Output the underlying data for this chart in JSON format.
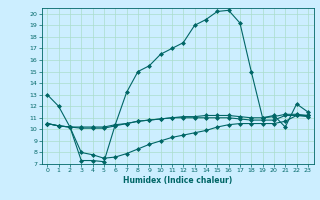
{
  "title": "",
  "xlabel": "Humidex (Indice chaleur)",
  "bg_color": "#cceeff",
  "grid_color": "#aaddcc",
  "line_color": "#006666",
  "xlim": [
    -0.5,
    23.5
  ],
  "ylim": [
    7,
    20.5
  ],
  "xticks": [
    0,
    1,
    2,
    3,
    4,
    5,
    6,
    7,
    8,
    9,
    10,
    11,
    12,
    13,
    14,
    15,
    16,
    17,
    18,
    19,
    20,
    21,
    22,
    23
  ],
  "yticks": [
    7,
    8,
    9,
    10,
    11,
    12,
    13,
    14,
    15,
    16,
    17,
    18,
    19,
    20
  ],
  "series": [
    {
      "x": [
        0,
        1,
        2,
        3,
        4,
        5,
        6,
        7,
        8,
        9,
        10,
        11,
        12,
        13,
        14,
        15,
        16,
        17,
        18,
        19,
        20,
        21,
        22,
        23
      ],
      "y": [
        13,
        12,
        10.2,
        7.3,
        7.3,
        7.2,
        10.4,
        13.2,
        15,
        15.5,
        16.5,
        17,
        17.5,
        19,
        19.5,
        20.2,
        20.3,
        19.2,
        15,
        11,
        11.2,
        10.2,
        12.2,
        11.5
      ]
    },
    {
      "x": [
        0,
        1,
        2,
        3,
        4,
        5,
        6,
        7,
        8,
        9,
        10,
        11,
        12,
        13,
        14,
        15,
        16,
        17,
        18,
        19,
        20,
        21,
        22,
        23
      ],
      "y": [
        10.5,
        10.3,
        10.2,
        10.2,
        10.2,
        10.2,
        10.4,
        10.5,
        10.7,
        10.8,
        10.9,
        11,
        11,
        11,
        11,
        11,
        11,
        10.9,
        10.8,
        10.8,
        10.8,
        11.2,
        11.2,
        11.2
      ]
    },
    {
      "x": [
        0,
        1,
        2,
        3,
        4,
        5,
        6,
        7,
        8,
        9,
        10,
        11,
        12,
        13,
        14,
        15,
        16,
        17,
        18,
        19,
        20,
        21,
        22,
        23
      ],
      "y": [
        10.5,
        10.3,
        10.2,
        10.1,
        10.1,
        10.1,
        10.3,
        10.5,
        10.7,
        10.8,
        10.9,
        11,
        11.1,
        11.1,
        11.2,
        11.2,
        11.2,
        11.1,
        11,
        11,
        11.1,
        11.3,
        11.3,
        11.2
      ]
    },
    {
      "x": [
        0,
        1,
        2,
        3,
        4,
        5,
        6,
        7,
        8,
        9,
        10,
        11,
        12,
        13,
        14,
        15,
        16,
        17,
        18,
        19,
        20,
        21,
        22,
        23
      ],
      "y": [
        10.5,
        10.3,
        10.2,
        8.0,
        7.8,
        7.5,
        7.6,
        7.9,
        8.3,
        8.7,
        9.0,
        9.3,
        9.5,
        9.7,
        9.9,
        10.2,
        10.4,
        10.5,
        10.5,
        10.5,
        10.5,
        10.7,
        11.2,
        11.1
      ]
    }
  ]
}
